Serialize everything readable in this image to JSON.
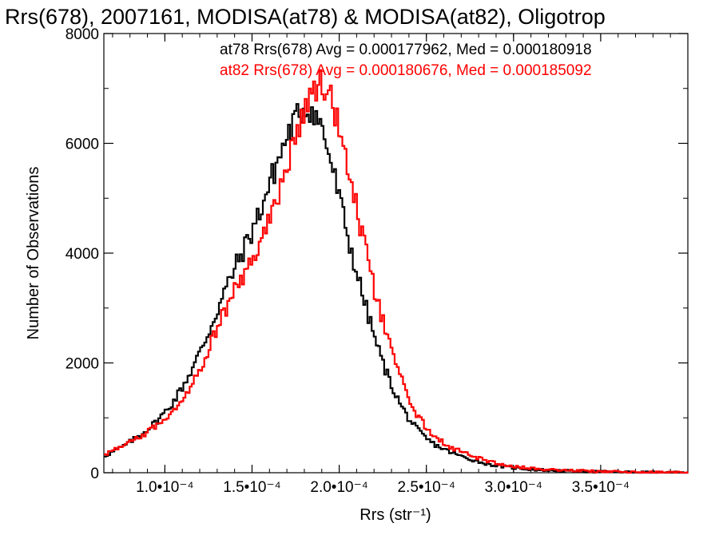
{
  "chart_data": {
    "type": "histogram",
    "title": "Rrs(678), 2007161, MODISA(at78) & MODISA(at82), Oligotrop",
    "xlabel": "Rrs (str⁻¹)",
    "ylabel": "Number of Observations",
    "xlim": [
      6.5e-05,
      0.0004
    ],
    "ylim": [
      0,
      8000
    ],
    "x_ticks": [
      {
        "value": 0.0001,
        "label": "1.0•10⁻⁴"
      },
      {
        "value": 0.00015,
        "label": "1.5•10⁻⁴"
      },
      {
        "value": 0.0002,
        "label": "2.0•10⁻⁴"
      },
      {
        "value": 0.00025,
        "label": "2.5•10⁻⁴"
      },
      {
        "value": 0.0003,
        "label": "3.0•10⁻⁴"
      },
      {
        "value": 0.00035,
        "label": "3.5•10⁻⁴"
      }
    ],
    "y_ticks": [
      {
        "value": 0,
        "label": "0"
      },
      {
        "value": 2000,
        "label": "2000"
      },
      {
        "value": 4000,
        "label": "4000"
      },
      {
        "value": 6000,
        "label": "6000"
      },
      {
        "value": 8000,
        "label": "8000"
      }
    ],
    "grid": false,
    "series": [
      {
        "name": "at78",
        "color": "#000000",
        "stat_text": "at78 Rrs(678) Avg = 0.000177962, Med = 0.000180918",
        "x": [
          6.5e-05,
          7e-05,
          7.5e-05,
          8e-05,
          8.5e-05,
          9e-05,
          9.5e-05,
          0.0001,
          0.000105,
          0.00011,
          0.000115,
          0.00012,
          0.000125,
          0.00013,
          0.000135,
          0.00014,
          0.000145,
          0.00015,
          0.000155,
          0.00016,
          0.000165,
          0.00017,
          0.000175,
          0.00018,
          0.000185,
          0.00019,
          0.000195,
          0.0002,
          0.000205,
          0.00021,
          0.000215,
          0.00022,
          0.000225,
          0.00023,
          0.000235,
          0.00024,
          0.000245,
          0.00025,
          0.000255,
          0.00026,
          0.000265,
          0.00027,
          0.000275,
          0.00028,
          0.000285,
          0.00029,
          0.000295,
          0.0003,
          0.00031,
          0.00032,
          0.00033,
          0.00034,
          0.00035,
          0.00036,
          0.00037,
          0.00038,
          0.00039,
          0.0004
        ],
        "values": [
          300,
          380,
          460,
          560,
          670,
          790,
          930,
          1100,
          1300,
          1560,
          1850,
          2180,
          2550,
          2950,
          3350,
          3720,
          4050,
          4400,
          4800,
          5250,
          5700,
          6100,
          6450,
          6650,
          6600,
          6300,
          5700,
          5000,
          4300,
          3650,
          3050,
          2500,
          2000,
          1600,
          1250,
          980,
          780,
          620,
          510,
          430,
          360,
          300,
          250,
          200,
          160,
          130,
          110,
          90,
          60,
          45,
          35,
          25,
          20,
          15,
          10,
          6,
          3,
          1
        ]
      },
      {
        "name": "at82",
        "color": "#ff0000",
        "stat_text": "at82 Rrs(678) Avg = 0.000180676, Med = 0.000185092",
        "x": [
          6.5e-05,
          7e-05,
          7.5e-05,
          8e-05,
          8.5e-05,
          9e-05,
          9.5e-05,
          0.0001,
          0.000105,
          0.00011,
          0.000115,
          0.00012,
          0.000125,
          0.00013,
          0.000135,
          0.00014,
          0.000145,
          0.00015,
          0.000155,
          0.00016,
          0.000165,
          0.00017,
          0.000175,
          0.00018,
          0.000185,
          0.00019,
          0.000195,
          0.0002,
          0.000205,
          0.00021,
          0.000215,
          0.00022,
          0.000225,
          0.00023,
          0.000235,
          0.00024,
          0.000245,
          0.00025,
          0.000255,
          0.00026,
          0.000265,
          0.00027,
          0.000275,
          0.00028,
          0.000285,
          0.00029,
          0.000295,
          0.0003,
          0.00031,
          0.00032,
          0.00033,
          0.00034,
          0.00035,
          0.00036,
          0.00037,
          0.00038,
          0.00039,
          0.0004
        ],
        "values": [
          330,
          400,
          470,
          550,
          640,
          740,
          860,
          990,
          1150,
          1350,
          1600,
          1900,
          2250,
          2630,
          3000,
          3300,
          3580,
          3870,
          4200,
          4600,
          5050,
          5600,
          6150,
          6650,
          6950,
          7100,
          6850,
          6300,
          5600,
          4800,
          4050,
          3350,
          2750,
          2200,
          1750,
          1350,
          1040,
          820,
          660,
          540,
          450,
          380,
          320,
          265,
          215,
          175,
          140,
          115,
          80,
          60,
          45,
          33,
          24,
          16,
          10,
          6,
          3,
          1
        ]
      }
    ]
  }
}
